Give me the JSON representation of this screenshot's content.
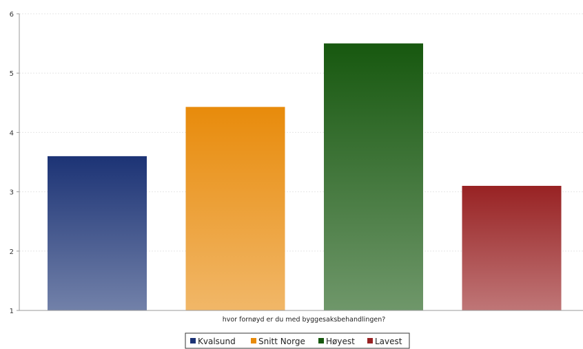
{
  "chart_data": {
    "type": "bar",
    "title": "",
    "xlabel": "hvor fornøyd er du med byggesaksbehandlingen?",
    "ylabel": "",
    "ylim": [
      1,
      6
    ],
    "yticks": [
      1,
      2,
      3,
      4,
      5,
      6
    ],
    "grid": true,
    "legend_position": "bottom",
    "series": [
      {
        "name": "Kvalsund",
        "value": 3.6,
        "color": "#1c3375"
      },
      {
        "name": "Snitt Norge",
        "value": 4.43,
        "color": "#e88b0b"
      },
      {
        "name": "Høyest",
        "value": 5.5,
        "color": "#17580f"
      },
      {
        "name": "Lavest",
        "value": 3.1,
        "color": "#982223"
      }
    ]
  }
}
